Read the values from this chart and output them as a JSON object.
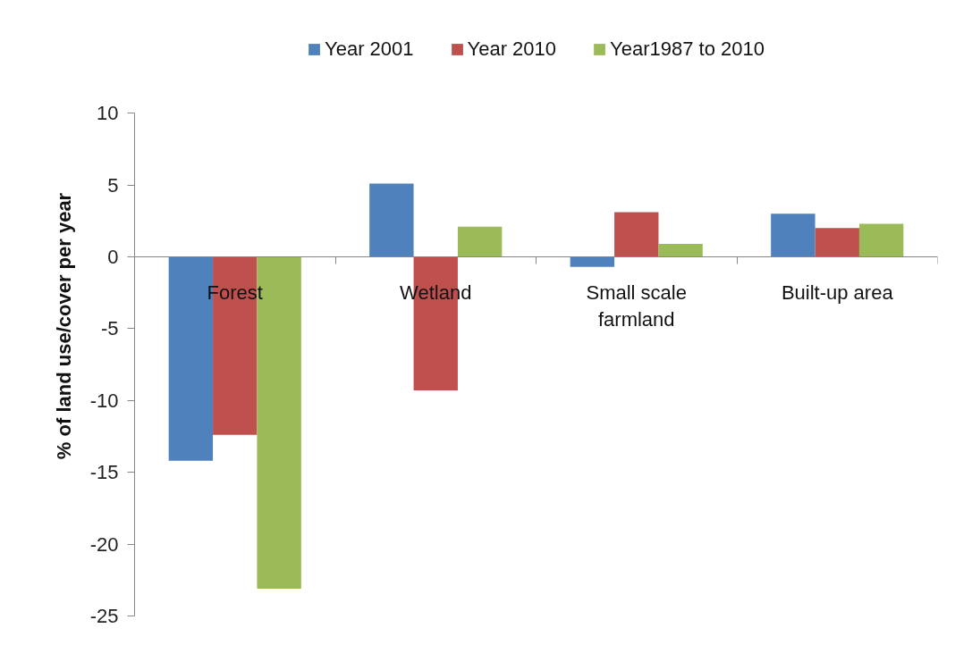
{
  "chart_data": {
    "type": "bar",
    "ylabel": "% of land use/cover per year",
    "categories": [
      "Forest",
      "Wetland",
      "Small scale farmland",
      "Built-up area"
    ],
    "series": [
      {
        "name": "Year 2001",
        "color": "#4f81bd",
        "values": [
          -14.2,
          5.1,
          -0.7,
          3.0
        ]
      },
      {
        "name": "Year 2010",
        "color": "#c0504d",
        "values": [
          -12.4,
          -9.3,
          3.1,
          2.0
        ]
      },
      {
        "name": "Year1987 to 2010",
        "color": "#9bbb59",
        "values": [
          -23.1,
          2.1,
          0.9,
          2.3
        ]
      }
    ],
    "ylim": [
      -25,
      10
    ],
    "yticks": [
      -25,
      -20,
      -15,
      -10,
      -5,
      0,
      5,
      10
    ],
    "grid": false,
    "legend": "top"
  }
}
